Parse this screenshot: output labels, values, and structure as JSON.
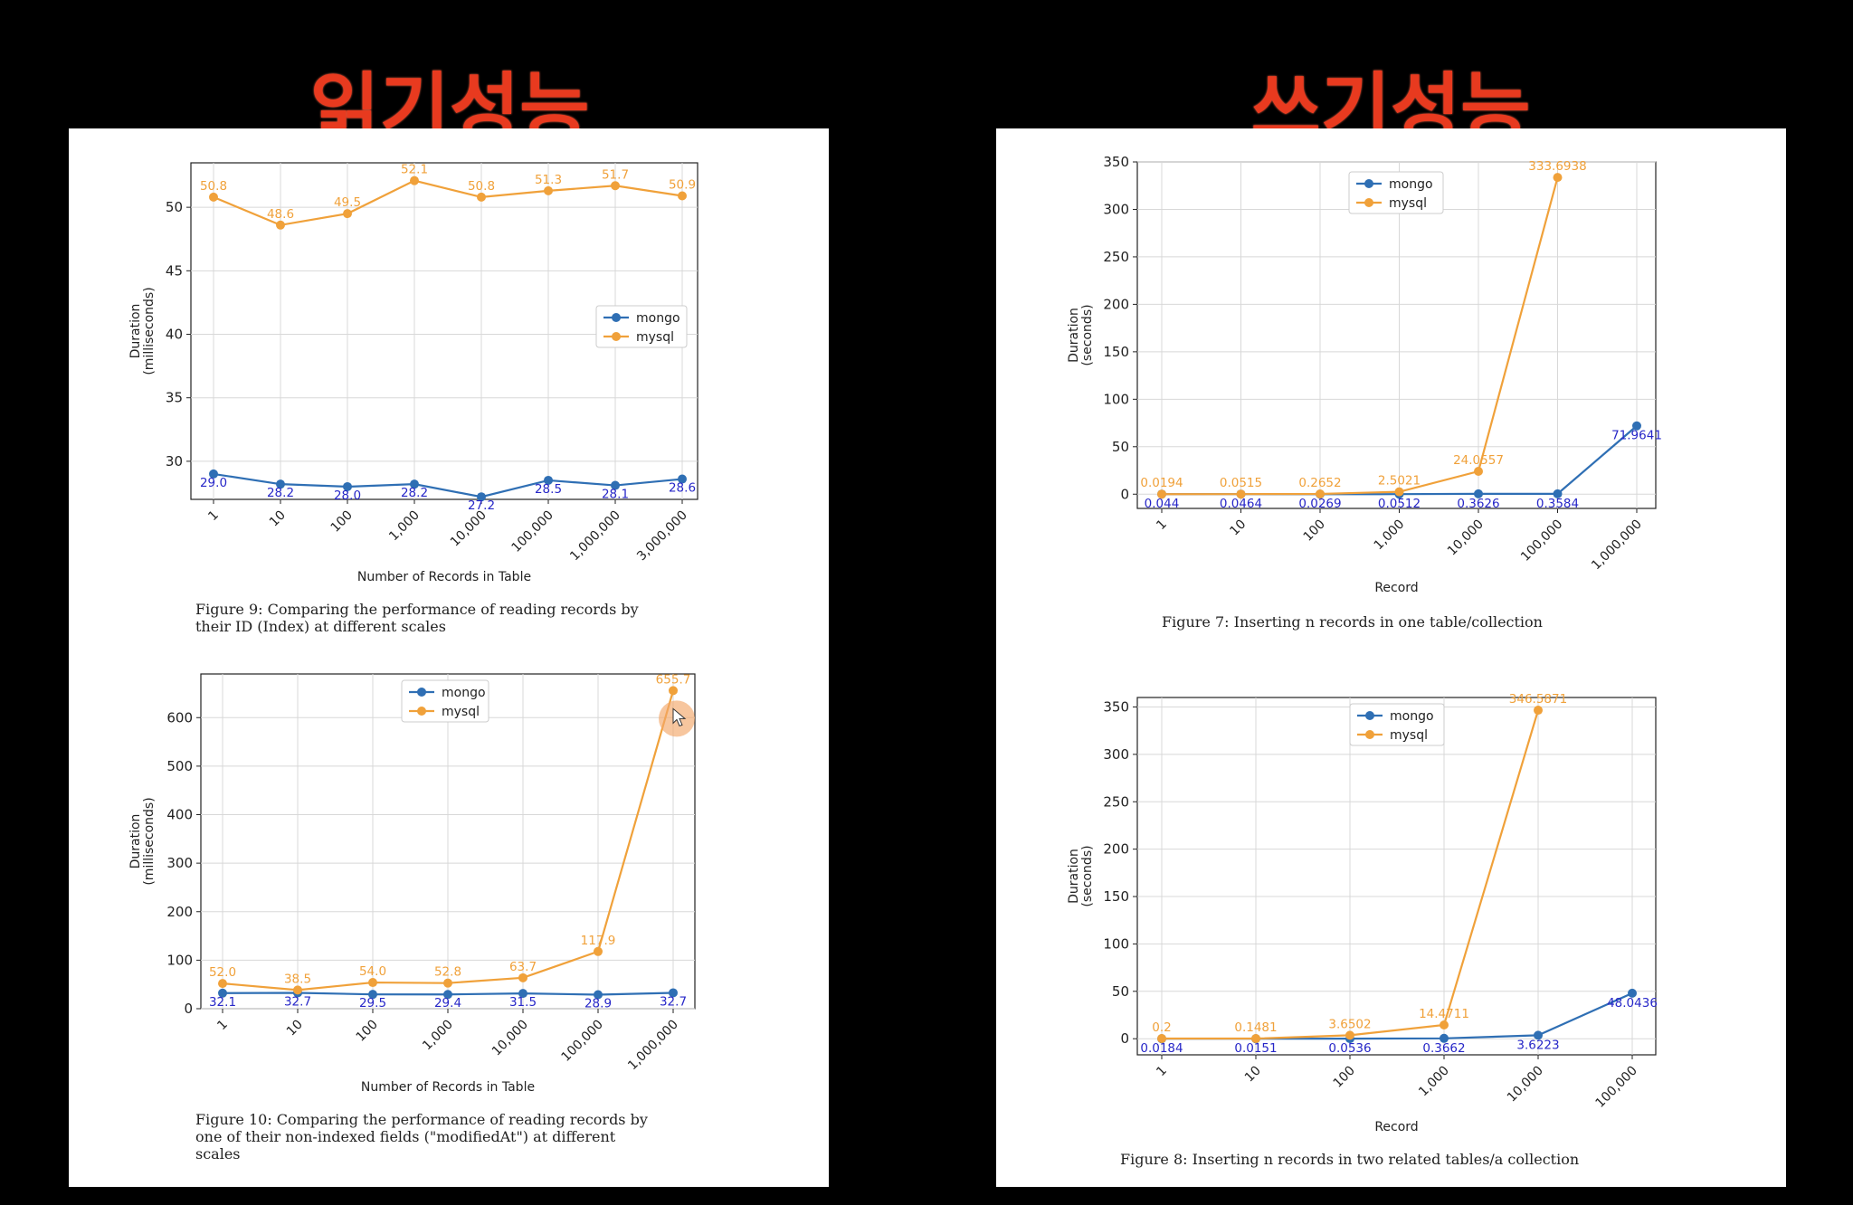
{
  "headings": {
    "read": "읽기성능",
    "write": "쓰기성능"
  },
  "colors": {
    "mongo": "#2f6fb4",
    "mysql": "#f0a13a",
    "mongo_label": "#2727c8",
    "mysql_label": "#f0a13a",
    "heading": "#e83a1f"
  },
  "captions": {
    "fig9": "Figure 9: Comparing the performance of reading records by\ntheir ID (Index) at different scales",
    "fig10": "Figure 10: Comparing the performance of reading records by\none of their non-indexed fields (\"modifiedAt\") at different\nscales",
    "fig7": "Figure 7: Inserting n records in one table/collection",
    "fig8": "Figure 8: Inserting n records in two related tables/a collection"
  },
  "chart_data": [
    {
      "id": "fig9",
      "type": "line",
      "categories": [
        "1",
        "10",
        "100",
        "1,000",
        "10,000",
        "100,000",
        "1,000,000",
        "3,000,000"
      ],
      "xlabel": "Number of Records in Table",
      "ylabel": [
        "Duration",
        "(milliseconds)"
      ],
      "ylim": [
        27,
        53.5
      ],
      "yticks": [
        "30",
        "35",
        "40",
        "45",
        "50"
      ],
      "ytick_values": [
        30,
        35,
        40,
        45,
        50
      ],
      "legend": "center-right",
      "grid": true,
      "series": [
        {
          "name": "mongo",
          "values": [
            29.0,
            28.2,
            28.0,
            28.2,
            27.2,
            28.5,
            28.1,
            28.6
          ],
          "labels": [
            "29.0",
            "28.2",
            "28.0",
            "28.2",
            "27.2",
            "28.5",
            "28.1",
            "28.6"
          ]
        },
        {
          "name": "mysql",
          "values": [
            50.8,
            48.6,
            49.5,
            52.1,
            50.8,
            51.3,
            51.7,
            50.9
          ],
          "labels": [
            "50.8",
            "48.6",
            "49.5",
            "52.1",
            "50.8",
            "51.3",
            "51.7",
            "50.9"
          ]
        }
      ]
    },
    {
      "id": "fig10",
      "type": "line",
      "categories": [
        "1",
        "10",
        "100",
        "1,000",
        "10,000",
        "100,000",
        "1,000,000"
      ],
      "xlabel": "Number of Records in Table",
      "ylabel": [
        "Duration",
        "(milliseconds)"
      ],
      "ylim": [
        0,
        690
      ],
      "yticks": [
        "0",
        "100",
        "200",
        "300",
        "400",
        "500",
        "600"
      ],
      "ytick_values": [
        0,
        100,
        200,
        300,
        400,
        500,
        600
      ],
      "legend": "top-center",
      "grid": true,
      "series": [
        {
          "name": "mongo",
          "values": [
            32.1,
            32.7,
            29.5,
            29.4,
            31.5,
            28.9,
            32.7
          ],
          "labels": [
            "32.1",
            "32.7",
            "29.5",
            "29.4",
            "31.5",
            "28.9",
            "32.7"
          ]
        },
        {
          "name": "mysql",
          "values": [
            52.0,
            38.5,
            54.0,
            52.8,
            63.7,
            117.9,
            655.7
          ],
          "labels": [
            "52.0",
            "38.5",
            "54.0",
            "52.8",
            "63.7",
            "117.9",
            "655.7"
          ]
        }
      ]
    },
    {
      "id": "fig7",
      "type": "line",
      "categories": [
        "1",
        "10",
        "100",
        "1,000",
        "10,000",
        "100,000",
        "1,000,000"
      ],
      "xlabel": "Record",
      "ylabel": [
        "Duration",
        "(seconds)"
      ],
      "ylim": [
        -15,
        350
      ],
      "yticks": [
        "0",
        "50",
        "100",
        "150",
        "200",
        "250",
        "300",
        "350"
      ],
      "ytick_values": [
        0,
        50,
        100,
        150,
        200,
        250,
        300,
        350
      ],
      "legend": "top-center",
      "grid": true,
      "series": [
        {
          "name": "mongo",
          "values": [
            0.044,
            0.0464,
            0.0269,
            0.0512,
            0.3626,
            0.3584,
            71.9641
          ],
          "labels": [
            "0.044",
            "0.0464",
            "0.0269",
            "0.0512",
            "0.3626",
            "0.3584",
            "71.9641"
          ]
        },
        {
          "name": "mysql",
          "values": [
            0.0194,
            0.0515,
            0.2652,
            2.5021,
            24.0557,
            333.6938,
            null
          ],
          "labels": [
            "0.0194",
            "0.0515",
            "0.2652",
            "2.5021",
            "24.0557",
            "333.6938",
            ""
          ]
        }
      ]
    },
    {
      "id": "fig8",
      "type": "line",
      "categories": [
        "1",
        "10",
        "100",
        "1,000",
        "10,000",
        "100,000"
      ],
      "xlabel": "Record",
      "ylabel": [
        "Duration",
        "(seconds)"
      ],
      "ylim": [
        -17,
        360
      ],
      "yticks": [
        "0",
        "50",
        "100",
        "150",
        "200",
        "250",
        "300",
        "350"
      ],
      "ytick_values": [
        0,
        50,
        100,
        150,
        200,
        250,
        300,
        350
      ],
      "legend": "top-center",
      "grid": true,
      "series": [
        {
          "name": "mongo",
          "values": [
            0.0184,
            0.0151,
            0.0536,
            0.3662,
            3.6223,
            48.0436
          ],
          "labels": [
            "0.0184",
            "0.0151",
            "0.0536",
            "0.3662",
            "3.6223",
            "48.0436"
          ]
        },
        {
          "name": "mysql",
          "values": [
            0.2,
            0.1481,
            3.6502,
            14.4711,
            346.5871,
            null
          ],
          "labels": [
            "0.2",
            "0.1481",
            "3.6502",
            "14.4711",
            "346.5871",
            ""
          ]
        }
      ]
    }
  ]
}
